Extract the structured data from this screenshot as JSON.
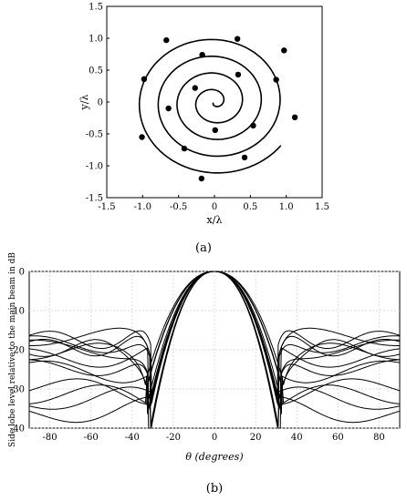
{
  "chart_data": [
    {
      "id": "a",
      "type": "scatter",
      "caption": "(a)",
      "xlabel": "x/λ",
      "ylabel": "y/λ",
      "xlim": [
        -1.5,
        1.5
      ],
      "ylim": [
        -1.5,
        1.5
      ],
      "x_ticks": [
        "-1.5",
        "-1.0",
        "-0.5",
        "0",
        "0.5",
        "1.0",
        "1.5"
      ],
      "y_ticks": [
        "1.5",
        "1.0",
        "0.5",
        "0",
        "-0.5",
        "-1.0",
        "-1.5"
      ],
      "grid": false,
      "curve": "spiral",
      "spiral_turns": 4.3,
      "spiral_max_radius": 1.13,
      "points": [
        {
          "x": 0.97,
          "y": 0.81
        },
        {
          "x": 0.32,
          "y": 0.99
        },
        {
          "x": -0.67,
          "y": 0.97
        },
        {
          "x": -0.17,
          "y": 0.74
        },
        {
          "x": 0.33,
          "y": 0.43
        },
        {
          "x": -0.98,
          "y": 0.36
        },
        {
          "x": 0.86,
          "y": 0.35
        },
        {
          "x": -0.27,
          "y": 0.22
        },
        {
          "x": -0.64,
          "y": -0.1
        },
        {
          "x": 1.12,
          "y": -0.24
        },
        {
          "x": 0.54,
          "y": -0.37
        },
        {
          "x": 0.01,
          "y": -0.44
        },
        {
          "x": -1.01,
          "y": -0.55
        },
        {
          "x": -0.42,
          "y": -0.73
        },
        {
          "x": 0.42,
          "y": -0.87
        },
        {
          "x": -0.18,
          "y": -1.2
        }
      ]
    },
    {
      "id": "b",
      "type": "line",
      "caption": "(b)",
      "xlabel": "θ (degrees)",
      "ylabel": "Side lobe level relative to the main beam in dB",
      "xlim": [
        -90,
        90
      ],
      "ylim": [
        -40,
        0
      ],
      "x_ticks": [
        "-80",
        "-60",
        "-40",
        "-20",
        "0",
        "20",
        "40",
        "60",
        "80"
      ],
      "y_ticks": [
        "0",
        "-10",
        "-20",
        "-30",
        "-40"
      ],
      "grid": true,
      "main_lobe_null_deg": 32,
      "side_lobe_levels_db": [
        -17,
        -18,
        -19,
        -20,
        -21,
        -17.5,
        -19,
        -24,
        -27,
        -29,
        -30,
        -33,
        -18.5,
        -22
      ],
      "series_count": 14
    }
  ]
}
